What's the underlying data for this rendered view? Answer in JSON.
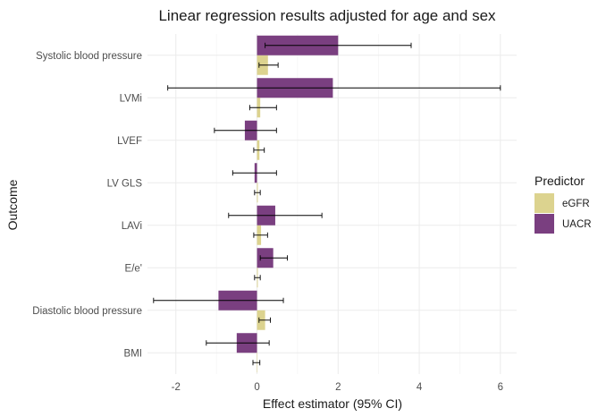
{
  "chart_data": {
    "type": "bar",
    "orientation": "horizontal",
    "title": "Linear regression results adjusted for age and sex",
    "xlabel": "Effect estimator (95% CI)",
    "ylabel": "Outcome",
    "xlim": [
      -2.7,
      6.4
    ],
    "xticks": [
      -2,
      0,
      2,
      4,
      6
    ],
    "grid": true,
    "legend": {
      "title": "Predictor",
      "placement": "right"
    },
    "categories": [
      "Systolic blood pressure",
      "LVMi",
      "LVEF",
      "LV GLS",
      "LAVi",
      "E/e'",
      "Diastolic blood pressure",
      "BMI"
    ],
    "series": [
      {
        "name": "eGFR",
        "color": "#dcd38f",
        "values": [
          0.27,
          0.08,
          0.06,
          0.02,
          0.1,
          0.02,
          0.2,
          0.0
        ],
        "ci_low": [
          0.05,
          -0.18,
          -0.08,
          -0.06,
          -0.08,
          -0.06,
          0.05,
          -0.1
        ],
        "ci_high": [
          0.52,
          0.48,
          0.18,
          0.08,
          0.26,
          0.08,
          0.33,
          0.07
        ]
      },
      {
        "name": "UACR",
        "color": "#7a3f80",
        "values": [
          2.0,
          1.87,
          -0.3,
          -0.06,
          0.45,
          0.4,
          -0.95,
          -0.5
        ],
        "ci_low": [
          0.2,
          -2.2,
          -1.05,
          -0.6,
          -0.7,
          0.08,
          -2.55,
          -1.25
        ],
        "ci_high": [
          3.8,
          6.0,
          0.48,
          0.48,
          1.6,
          0.75,
          0.65,
          0.3
        ]
      }
    ]
  }
}
